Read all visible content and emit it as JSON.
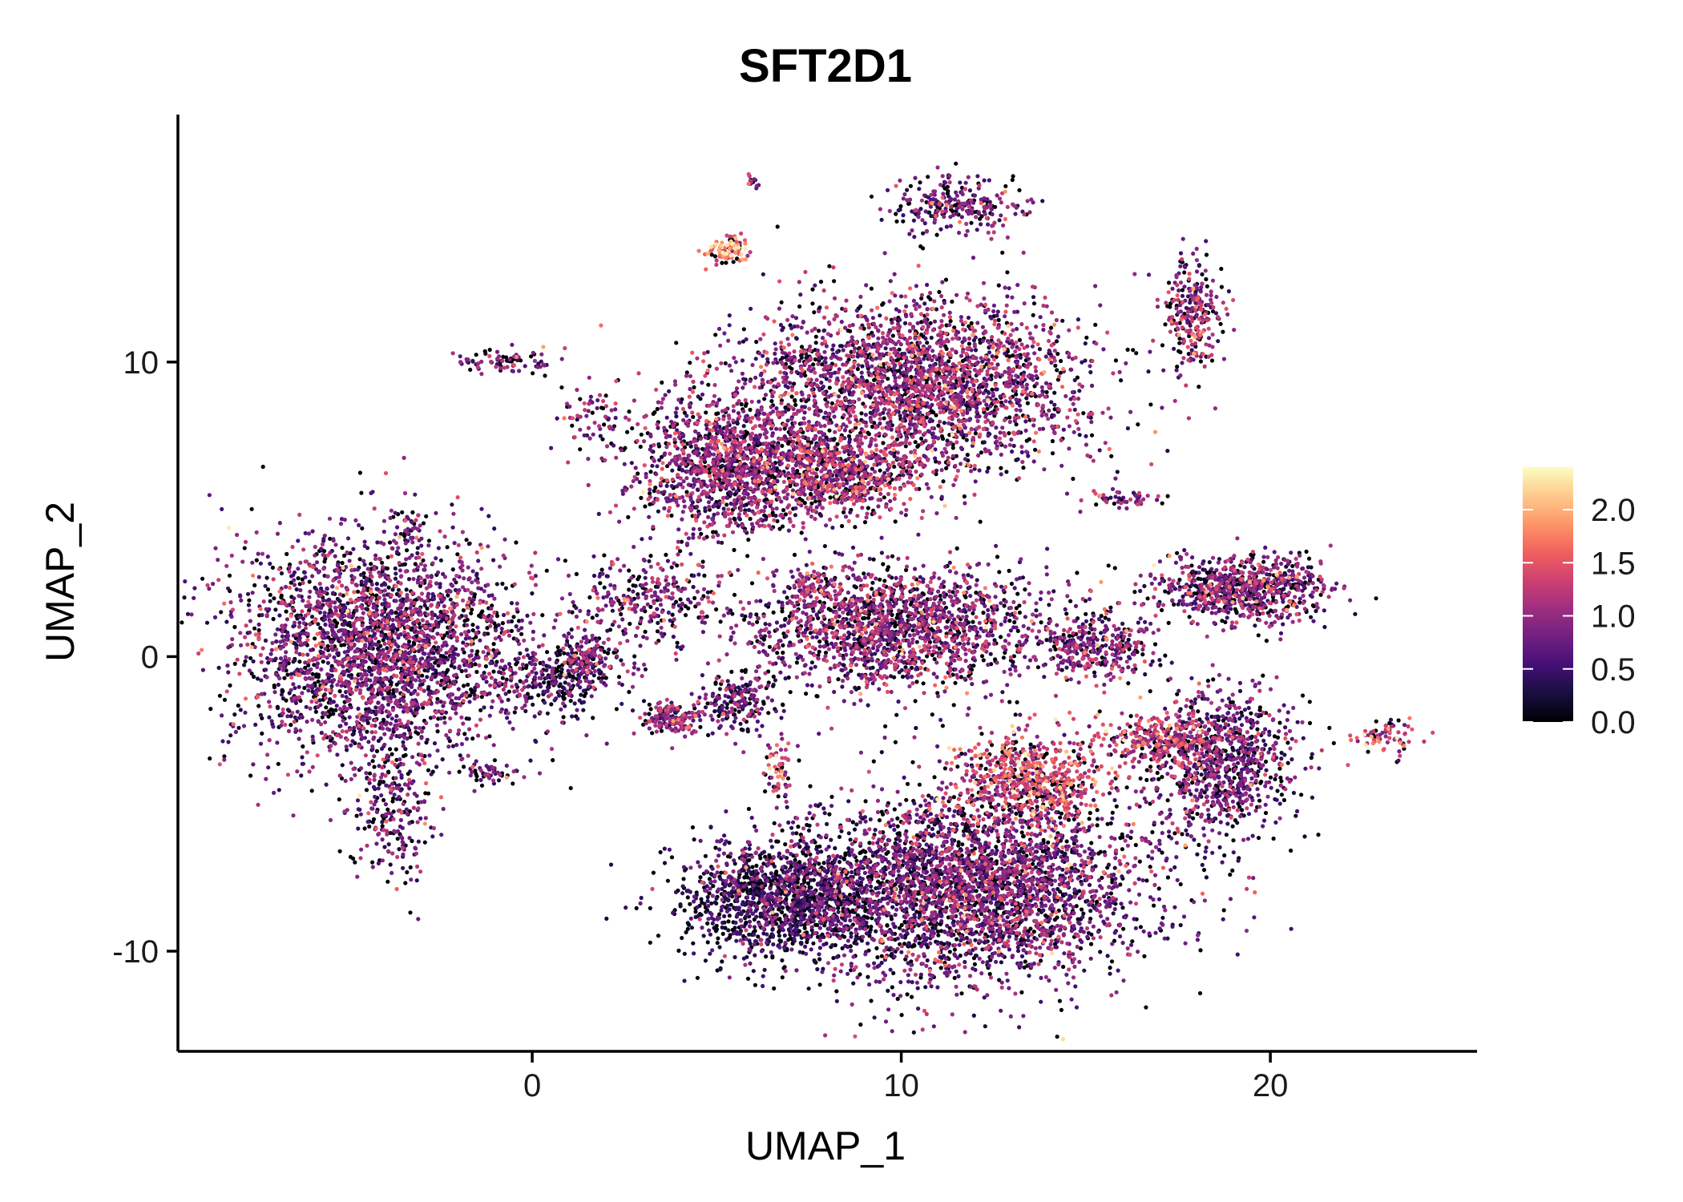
{
  "chart_data": {
    "type": "scatter",
    "title": "SFT2D1",
    "xlabel": "UMAP_1",
    "ylabel": "UMAP_2",
    "xlim": [
      -9.6,
      25.6
    ],
    "ylim": [
      -13.4,
      18.4
    ],
    "xticks": [
      0,
      10,
      20
    ],
    "yticks": [
      -10,
      0,
      10
    ],
    "xtick_labels": [
      "0",
      "10",
      "20"
    ],
    "ytick_labels": [
      "-10",
      "0",
      "10"
    ],
    "grid": false,
    "color_scale": {
      "name": "magma",
      "min": 0.0,
      "max": 2.4,
      "ticks": [
        0.0,
        0.5,
        1.0,
        1.5,
        2.0
      ],
      "tick_labels": [
        "0.0",
        "0.5",
        "1.0",
        "1.5",
        "2.0"
      ],
      "stops": [
        "#000004",
        "#180f3d",
        "#440f76",
        "#721f81",
        "#9e2f7f",
        "#cd4071",
        "#f1605d",
        "#fd9668",
        "#feca8d",
        "#fcfdbf"
      ]
    },
    "legend_position": "right",
    "point_count_estimate": 30000,
    "clusters": [
      {
        "name": "left-large",
        "cx": -4.2,
        "cy": 0.3,
        "sx": 2.0,
        "sy": 1.9,
        "n": 2800,
        "expr": 0.75
      },
      {
        "name": "left-tail",
        "cx": -3.8,
        "cy": -4.8,
        "sx": 0.6,
        "sy": 1.4,
        "n": 260,
        "expr": 0.7
      },
      {
        "name": "left-bridge",
        "cx": 0.6,
        "cy": -0.8,
        "sx": 1.0,
        "sy": 0.5,
        "n": 260,
        "expr": 0.5
      },
      {
        "name": "center-top",
        "cx": 10.5,
        "cy": 9.2,
        "sx": 2.3,
        "sy": 1.5,
        "n": 2600,
        "expr": 0.9
      },
      {
        "name": "center-left-upper",
        "cx": 5.4,
        "cy": 6.5,
        "sx": 1.3,
        "sy": 1.2,
        "n": 1300,
        "expr": 0.85
      },
      {
        "name": "center-middle",
        "cx": 8.4,
        "cy": 6.2,
        "sx": 1.0,
        "sy": 0.7,
        "n": 650,
        "expr": 1.0
      },
      {
        "name": "center-lower",
        "cx": 9.8,
        "cy": 1.0,
        "sx": 2.0,
        "sy": 1.1,
        "n": 1700,
        "expr": 0.85
      },
      {
        "name": "stream",
        "cx": 3.0,
        "cy": 2.0,
        "sx": 1.1,
        "sy": 0.8,
        "n": 300,
        "expr": 0.8
      },
      {
        "name": "bottom-large",
        "cx": 11.8,
        "cy": -7.8,
        "sx": 2.4,
        "sy": 1.6,
        "n": 3400,
        "expr": 0.75
      },
      {
        "name": "bottom-left-dark",
        "cx": 6.8,
        "cy": -8.3,
        "sx": 1.3,
        "sy": 1.0,
        "n": 1300,
        "expr": 0.35
      },
      {
        "name": "bottom-upper-arm",
        "cx": 13.6,
        "cy": -4.2,
        "sx": 1.1,
        "sy": 0.8,
        "n": 650,
        "expr": 1.3
      },
      {
        "name": "right-upper",
        "cx": 19.3,
        "cy": 2.3,
        "sx": 1.1,
        "sy": 0.6,
        "n": 780,
        "expr": 0.8
      },
      {
        "name": "right-middle",
        "cx": 15.3,
        "cy": 0.3,
        "sx": 0.8,
        "sy": 0.6,
        "n": 340,
        "expr": 0.8
      },
      {
        "name": "right-lower",
        "cx": 18.7,
        "cy": -3.5,
        "sx": 1.0,
        "sy": 1.3,
        "n": 900,
        "expr": 0.75
      },
      {
        "name": "right-arm",
        "cx": 17.0,
        "cy": -2.8,
        "sx": 0.9,
        "sy": 0.4,
        "n": 260,
        "expr": 1.2
      },
      {
        "name": "top-right-small",
        "cx": 17.9,
        "cy": 11.5,
        "sx": 0.4,
        "sy": 1.0,
        "n": 260,
        "expr": 1.0
      },
      {
        "name": "top-ring",
        "cx": 11.5,
        "cy": 15.3,
        "sx": 0.9,
        "sy": 0.5,
        "n": 260,
        "expr": 0.7
      },
      {
        "name": "top-orange",
        "cx": 5.3,
        "cy": 13.8,
        "sx": 0.25,
        "sy": 0.25,
        "n": 90,
        "expr": 1.6
      },
      {
        "name": "island-a",
        "cx": 3.8,
        "cy": -2.1,
        "sx": 0.4,
        "sy": 0.3,
        "n": 160,
        "expr": 0.9
      },
      {
        "name": "island-b",
        "cx": 5.5,
        "cy": -1.6,
        "sx": 0.5,
        "sy": 0.5,
        "n": 200,
        "expr": 0.6
      },
      {
        "name": "island-c",
        "cx": 1.5,
        "cy": 0.0,
        "sx": 0.4,
        "sy": 0.4,
        "n": 140,
        "expr": 0.8
      },
      {
        "name": "island-d",
        "cx": 6.7,
        "cy": -3.9,
        "sx": 0.2,
        "sy": 0.5,
        "n": 60,
        "expr": 1.3
      },
      {
        "name": "island-e",
        "cx": 7.6,
        "cy": 2.3,
        "sx": 0.4,
        "sy": 0.3,
        "n": 70,
        "expr": 1.0
      },
      {
        "name": "island-f",
        "cx": -0.8,
        "cy": 10.0,
        "sx": 0.8,
        "sy": 0.2,
        "n": 80,
        "expr": 0.8
      },
      {
        "name": "island-g",
        "cx": 1.8,
        "cy": 7.9,
        "sx": 0.6,
        "sy": 0.6,
        "n": 70,
        "expr": 0.8
      },
      {
        "name": "island-h",
        "cx": 16.0,
        "cy": 5.4,
        "sx": 0.5,
        "sy": 0.15,
        "n": 50,
        "expr": 0.9
      },
      {
        "name": "island-i",
        "cx": 23.2,
        "cy": -2.7,
        "sx": 0.4,
        "sy": 0.3,
        "n": 70,
        "expr": 1.2
      },
      {
        "name": "island-j",
        "cx": -1.0,
        "cy": -4.0,
        "sx": 0.4,
        "sy": 0.15,
        "n": 50,
        "expr": 0.7
      },
      {
        "name": "island-k",
        "cx": -3.3,
        "cy": 4.4,
        "sx": 0.2,
        "sy": 0.3,
        "n": 30,
        "expr": 0.8
      },
      {
        "name": "island-l",
        "cx": 7.4,
        "cy": 10.1,
        "sx": 0.4,
        "sy": 0.12,
        "n": 30,
        "expr": 0.7
      },
      {
        "name": "island-m",
        "cx": 6.0,
        "cy": 16.2,
        "sx": 0.08,
        "sy": 0.12,
        "n": 15,
        "expr": 0.9
      }
    ]
  }
}
